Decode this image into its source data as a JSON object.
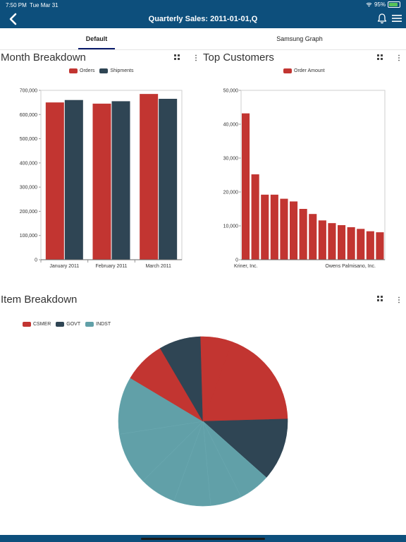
{
  "status": {
    "time": "7:50 PM",
    "day": "Tue Mar 31",
    "battery": "95%"
  },
  "header": {
    "title": "Quarterly Sales: 2011-01-01,Q"
  },
  "tabs": [
    {
      "label": "Default"
    },
    {
      "label": "Samsung Graph"
    }
  ],
  "colors": {
    "header": "#0d4f7c",
    "red": "#c23531",
    "navy": "#2f4554",
    "teal": "#61a0a8"
  },
  "month_section": {
    "title": "Month Breakdown"
  },
  "customers_section": {
    "title": "Top Customers"
  },
  "item_section": {
    "title": "Item Breakdown"
  },
  "chart_data": [
    {
      "type": "bar",
      "title": "Month Breakdown",
      "categories": [
        "January 2011",
        "February 2011",
        "March 2011"
      ],
      "series": [
        {
          "name": "Orders",
          "color": "#c23531",
          "values": [
            650000,
            645000,
            685000
          ]
        },
        {
          "name": "Shipments",
          "color": "#2f4554",
          "values": [
            660000,
            655000,
            665000
          ]
        }
      ],
      "ylim": [
        0,
        700000
      ],
      "yticks": [
        0,
        100000,
        200000,
        300000,
        400000,
        500000,
        600000,
        700000
      ],
      "ytick_labels": [
        "0",
        "100,000",
        "200,000",
        "300,000",
        "400,000",
        "500,000",
        "600,000",
        "700,000"
      ],
      "legend": "top"
    },
    {
      "type": "bar",
      "title": "Top Customers",
      "x_labels": [
        "Kriner, Inc.",
        "Owens Palmisano, Inc."
      ],
      "series": [
        {
          "name": "Order Amount",
          "color": "#c23531",
          "values": [
            43200,
            25200,
            19200,
            19200,
            18000,
            17200,
            15000,
            13500,
            11600,
            10800,
            10200,
            9600,
            9100,
            8400,
            8100
          ]
        }
      ],
      "ylim": [
        0,
        50000
      ],
      "yticks": [
        0,
        10000,
        20000,
        30000,
        40000,
        50000
      ],
      "ytick_labels": [
        "0",
        "10,000",
        "20,000",
        "30,000",
        "40,000",
        "50,000"
      ],
      "legend": "top"
    },
    {
      "type": "pie",
      "title": "Item Breakdown",
      "legend_entries": [
        {
          "name": "CSMER",
          "color": "#c23531"
        },
        {
          "name": "GOVT",
          "color": "#2f4554"
        },
        {
          "name": "INDST",
          "color": "#61a0a8"
        }
      ],
      "slices": [
        {
          "category": "CSMER",
          "color": "#c23531",
          "value": 19
        },
        {
          "category": "GOVT",
          "color": "#2f4554",
          "value": 12
        },
        {
          "category": "INDST",
          "color": "#61a0a8",
          "value": 6
        },
        {
          "category": "INDST",
          "color": "#61a0a8",
          "value": 6
        },
        {
          "category": "INDST",
          "color": "#61a0a8",
          "value": 7
        },
        {
          "category": "INDST",
          "color": "#61a0a8",
          "value": 7
        },
        {
          "category": "INDST",
          "color": "#61a0a8",
          "value": 10
        },
        {
          "category": "INDST",
          "color": "#61a0a8",
          "value": 11
        },
        {
          "category": "CSMER",
          "color": "#c23531",
          "value": 8
        },
        {
          "category": "GOVT",
          "color": "#2f4554",
          "value": 8
        },
        {
          "category": "CSMER",
          "color": "#c23531",
          "value": 6
        }
      ],
      "legend": "top-left"
    }
  ]
}
